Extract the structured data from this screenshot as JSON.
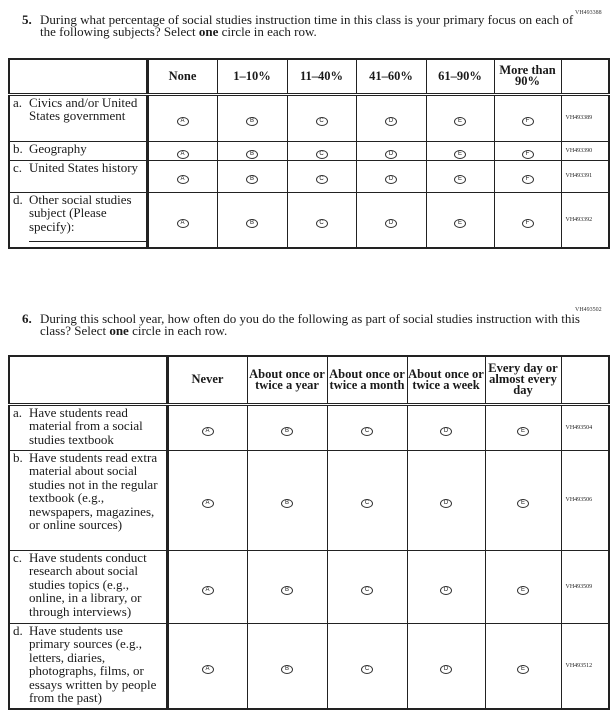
{
  "q5": {
    "code": "VH493388",
    "number": "5.",
    "text_before": "During what percentage of social studies instruction time in this class is your primary focus on each of the following subjects? Select ",
    "text_bold": "one",
    "text_after": " circle in each row.",
    "columns": [
      "None",
      "1–10%",
      "11–40%",
      "41–60%",
      "61–90%",
      "More than 90%"
    ],
    "bubbles": [
      "A",
      "B",
      "C",
      "D",
      "E",
      "F"
    ],
    "rows": [
      {
        "letter": "a.",
        "label": "Civics and/or United States government",
        "code": "VH493389"
      },
      {
        "letter": "b.",
        "label": "Geography",
        "code": "VH493390"
      },
      {
        "letter": "c.",
        "label": "United States history",
        "code": "VH493391"
      },
      {
        "letter": "d.",
        "label": "Other social studies subject (Please specify):",
        "code": "VH493392"
      }
    ]
  },
  "q6": {
    "code": "VH493502",
    "number": "6.",
    "text_before": "During this school year, how often do you do the following as part of social studies instruction with this class? Select ",
    "text_bold": "one",
    "text_after": " circle in each row.",
    "columns": [
      "Never",
      "About once or twice a year",
      "About once or twice a month",
      "About once or twice a week",
      "Every day or almost every day"
    ],
    "bubbles": [
      "A",
      "B",
      "C",
      "D",
      "E"
    ],
    "rows": [
      {
        "letter": "a.",
        "label": "Have students read material from a social studies textbook",
        "code": "VH493504"
      },
      {
        "letter": "b.",
        "label": "Have students read extra material about social studies not in the regular textbook (e.g., newspapers, magazines, or online sources)",
        "code": "VH493506"
      },
      {
        "letter": "c.",
        "label": "Have students conduct research about social studies topics (e.g., online, in a library, or through interviews)",
        "code": "VH493509"
      },
      {
        "letter": "d.",
        "label": "Have students use primary sources (e.g., letters, diaries, photographs, films, or essays written by people from the past)",
        "code": "VH493512"
      }
    ]
  }
}
